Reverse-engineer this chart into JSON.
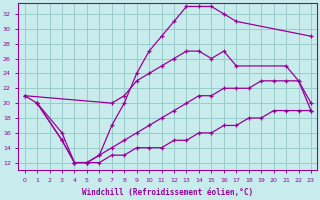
{
  "xlabel": "Windchill (Refroidissement éolien,°C)",
  "xlim": [
    -0.5,
    23.5
  ],
  "ylim": [
    11,
    33.5
  ],
  "xticks": [
    0,
    1,
    2,
    3,
    4,
    5,
    6,
    7,
    8,
    9,
    10,
    11,
    12,
    13,
    14,
    15,
    16,
    17,
    18,
    19,
    20,
    21,
    22,
    23
  ],
  "yticks": [
    12,
    14,
    16,
    18,
    20,
    22,
    24,
    26,
    28,
    30,
    32
  ],
  "bg_color": "#c8ecec",
  "line_color": "#990099",
  "grid_color": "#99cccc",
  "curves": [
    {
      "x": [
        0,
        1,
        3,
        4,
        5,
        6,
        7,
        8,
        9,
        10,
        11,
        12,
        13,
        14,
        15,
        16,
        17,
        23
      ],
      "y": [
        21,
        20,
        15,
        12,
        12,
        13,
        17,
        20,
        24,
        27,
        29,
        31,
        33,
        33,
        33,
        32,
        31,
        29
      ]
    },
    {
      "x": [
        0,
        7,
        8,
        9,
        10,
        11,
        12,
        13,
        14,
        15,
        16,
        17,
        21,
        22,
        23
      ],
      "y": [
        21,
        20,
        21,
        23,
        24,
        25,
        26,
        27,
        27,
        26,
        27,
        25,
        25,
        23,
        20
      ]
    },
    {
      "x": [
        1,
        3,
        4,
        5,
        6,
        7,
        8,
        9,
        10,
        11,
        12,
        13,
        14,
        15,
        16,
        17,
        18,
        19,
        20,
        21,
        22,
        23
      ],
      "y": [
        20,
        15,
        12,
        12,
        13,
        14,
        15,
        16,
        17,
        18,
        19,
        20,
        21,
        21,
        22,
        22,
        22,
        23,
        23,
        23,
        23,
        19
      ]
    },
    {
      "x": [
        1,
        3,
        4,
        5,
        6,
        7,
        8,
        9,
        10,
        11,
        12,
        13,
        14,
        15,
        16,
        17,
        18,
        19,
        20,
        21,
        22,
        23
      ],
      "y": [
        20,
        16,
        12,
        12,
        12,
        13,
        13,
        14,
        14,
        14,
        15,
        15,
        16,
        16,
        17,
        17,
        18,
        18,
        19,
        19,
        19,
        19
      ]
    }
  ]
}
